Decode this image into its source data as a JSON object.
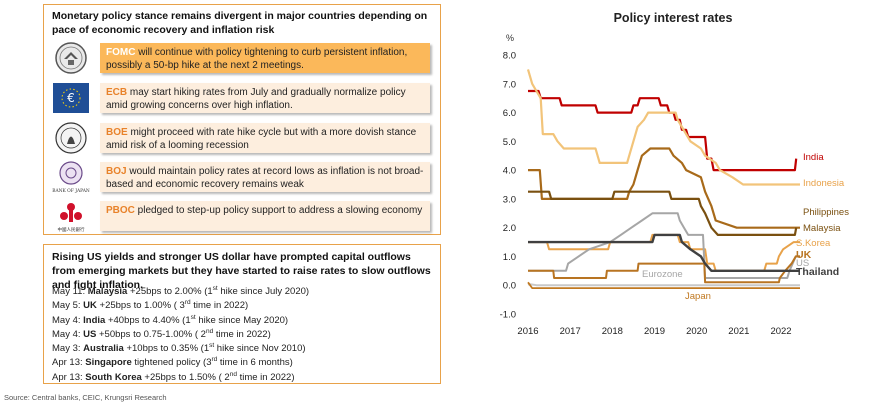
{
  "panels": {
    "policy_stance": {
      "heading": "Monetary policy stance remains divergent in major countries depending on pace of economic recovery and inflation risk",
      "banks": [
        {
          "name": "FOMC",
          "text": " will continue with policy tightening to curb persistent inflation, possibly a 50-bp hike at the next 2 meetings.",
          "logo": "federal-reserve-seal-icon"
        },
        {
          "name": "ECB",
          "text": " may start hiking rates from July and gradually normalize policy amid growing concerns over high inflation.",
          "logo": "euro-icon"
        },
        {
          "name": "BOE",
          "text": " might proceed with rate hike cycle but with a more dovish stance amid risk of a looming recession",
          "logo": "bank-of-england-seal-icon"
        },
        {
          "name": "BOJ",
          "text": " would maintain policy rates at record lows as inflation is not broad-based and economic recovery remains weak",
          "logo": "bank-of-japan-emblem-icon",
          "logo_caption": "BANK OF JAPAN"
        },
        {
          "name": "PBOC",
          "text": " pledged to step-up policy support to address a slowing economy",
          "logo": "peoples-bank-of-china-logo-icon",
          "logo_caption": "中國人民銀行"
        }
      ]
    },
    "rate_actions": {
      "heading": "Rising US yields and stronger US dollar have prompted capital outflows from emerging markets but they have started to raise rates to slow outflows and fight inflation.",
      "events": [
        {
          "date": "May 11: ",
          "country": "Malaysia",
          "detail": " +25bps to 2.00% (1",
          "sup": "st",
          "tail": " hike since July 2020)"
        },
        {
          "date": "May 5: ",
          "country": "UK",
          "detail": " +25bps to 1.00% ( 3",
          "sup": "rd",
          "tail": " time in 2022)"
        },
        {
          "date": "May 4: ",
          "country": "India",
          "detail": " +40bps to 4.40% (1",
          "sup": "st",
          "tail": " hike since  May 2020)"
        },
        {
          "date": "May 4: ",
          "country": "US",
          "detail": " +50bps to 0.75-1.00% ( 2",
          "sup": "nd",
          "tail": " time in 2022)"
        },
        {
          "date": "May 3: ",
          "country": "Australia",
          "detail": " +10bps to 0.35% (1",
          "sup": "st",
          "tail": " hike since  Nov 2010)"
        },
        {
          "date": "Apr 13: ",
          "country": "Singapore",
          "detail": " tightened policy (3",
          "sup": "rd",
          "tail": " time in 6 months)"
        },
        {
          "date": "Apr 13: ",
          "country": "South Korea",
          "detail": " +25bps  to 1.50% ( 2",
          "sup": "nd",
          "tail": " time in 2022)"
        }
      ]
    }
  },
  "source": "Source: Central banks, CEIC, Krungsri Research",
  "chart_data": {
    "type": "line",
    "title": "Policy interest rates",
    "ylabel": "%",
    "ylim": [
      -1.0,
      8.0
    ],
    "yticks": [
      "8.0",
      "7.0",
      "6.0",
      "5.0",
      "4.0",
      "3.0",
      "2.0",
      "1.0",
      "0.0",
      "-1.0"
    ],
    "xticks": [
      "2016",
      "2017",
      "2018",
      "2019",
      "2020",
      "2021",
      "2022"
    ],
    "x_range": [
      2016.0,
      2022.45
    ],
    "grid": false,
    "series": [
      {
        "name": "India",
        "color": "#c00000",
        "points": [
          [
            2016.0,
            6.75
          ],
          [
            2016.25,
            6.75
          ],
          [
            2016.3,
            6.5
          ],
          [
            2016.75,
            6.5
          ],
          [
            2016.8,
            6.25
          ],
          [
            2017.6,
            6.25
          ],
          [
            2017.65,
            6.0
          ],
          [
            2018.45,
            6.0
          ],
          [
            2018.5,
            6.25
          ],
          [
            2018.6,
            6.25
          ],
          [
            2018.65,
            6.5
          ],
          [
            2019.1,
            6.5
          ],
          [
            2019.15,
            6.25
          ],
          [
            2019.3,
            6.25
          ],
          [
            2019.35,
            6.0
          ],
          [
            2019.45,
            6.0
          ],
          [
            2019.5,
            5.75
          ],
          [
            2019.6,
            5.75
          ],
          [
            2019.65,
            5.4
          ],
          [
            2019.75,
            5.4
          ],
          [
            2019.8,
            5.15
          ],
          [
            2020.2,
            5.15
          ],
          [
            2020.25,
            4.4
          ],
          [
            2020.35,
            4.4
          ],
          [
            2020.4,
            4.0
          ],
          [
            2022.33,
            4.0
          ],
          [
            2022.36,
            4.4
          ]
        ]
      },
      {
        "name": "Indonesia",
        "color": "#f2c47a",
        "points": [
          [
            2016.0,
            7.5
          ],
          [
            2016.1,
            7.0
          ],
          [
            2016.2,
            6.75
          ],
          [
            2016.3,
            6.5
          ],
          [
            2016.35,
            5.25
          ],
          [
            2016.6,
            5.25
          ],
          [
            2016.7,
            5.0
          ],
          [
            2016.85,
            4.75
          ],
          [
            2017.6,
            4.75
          ],
          [
            2017.7,
            4.25
          ],
          [
            2018.35,
            4.25
          ],
          [
            2018.4,
            4.5
          ],
          [
            2018.5,
            5.0
          ],
          [
            2018.6,
            5.5
          ],
          [
            2018.75,
            5.75
          ],
          [
            2018.85,
            6.0
          ],
          [
            2019.5,
            6.0
          ],
          [
            2019.55,
            5.75
          ],
          [
            2019.65,
            5.5
          ],
          [
            2019.75,
            5.25
          ],
          [
            2019.85,
            5.0
          ],
          [
            2020.1,
            4.75
          ],
          [
            2020.2,
            4.5
          ],
          [
            2020.45,
            4.25
          ],
          [
            2020.55,
            4.0
          ],
          [
            2020.85,
            3.75
          ],
          [
            2021.1,
            3.5
          ],
          [
            2022.45,
            3.5
          ]
        ]
      },
      {
        "name": "Philippines",
        "color": "#a86a1a",
        "points": [
          [
            2016.0,
            4.0
          ],
          [
            2016.28,
            4.0
          ],
          [
            2016.33,
            3.0
          ],
          [
            2018.35,
            3.0
          ],
          [
            2018.4,
            3.25
          ],
          [
            2018.5,
            3.5
          ],
          [
            2018.6,
            4.0
          ],
          [
            2018.7,
            4.5
          ],
          [
            2018.9,
            4.75
          ],
          [
            2019.35,
            4.75
          ],
          [
            2019.45,
            4.5
          ],
          [
            2019.65,
            4.25
          ],
          [
            2019.75,
            4.0
          ],
          [
            2020.1,
            3.75
          ],
          [
            2020.2,
            3.25
          ],
          [
            2020.35,
            2.75
          ],
          [
            2020.45,
            2.25
          ],
          [
            2020.95,
            2.0
          ],
          [
            2022.45,
            2.0
          ]
        ]
      },
      {
        "name": "Malaysia",
        "color": "#7a5010",
        "points": [
          [
            2016.0,
            3.25
          ],
          [
            2016.5,
            3.25
          ],
          [
            2016.55,
            3.0
          ],
          [
            2018.0,
            3.0
          ],
          [
            2018.05,
            3.25
          ],
          [
            2019.35,
            3.25
          ],
          [
            2019.4,
            3.0
          ],
          [
            2020.05,
            3.0
          ],
          [
            2020.1,
            2.75
          ],
          [
            2020.2,
            2.5
          ],
          [
            2020.35,
            2.0
          ],
          [
            2020.5,
            1.75
          ],
          [
            2022.33,
            1.75
          ],
          [
            2022.36,
            2.0
          ]
        ]
      },
      {
        "name": "S.Korea",
        "color": "#e8a24a",
        "points": [
          [
            2016.0,
            1.5
          ],
          [
            2016.45,
            1.5
          ],
          [
            2016.5,
            1.25
          ],
          [
            2017.9,
            1.25
          ],
          [
            2017.95,
            1.5
          ],
          [
            2018.9,
            1.5
          ],
          [
            2018.95,
            1.75
          ],
          [
            2019.55,
            1.75
          ],
          [
            2019.6,
            1.5
          ],
          [
            2019.8,
            1.5
          ],
          [
            2019.85,
            1.25
          ],
          [
            2020.2,
            1.25
          ],
          [
            2020.25,
            0.75
          ],
          [
            2020.4,
            0.75
          ],
          [
            2020.45,
            0.5
          ],
          [
            2021.6,
            0.5
          ],
          [
            2021.65,
            0.75
          ],
          [
            2021.9,
            0.75
          ],
          [
            2021.95,
            1.0
          ],
          [
            2022.05,
            1.25
          ],
          [
            2022.3,
            1.5
          ],
          [
            2022.45,
            1.5
          ]
        ]
      },
      {
        "name": "US",
        "color": "#a6a6a6",
        "points": [
          [
            2016.0,
            0.5
          ],
          [
            2016.9,
            0.5
          ],
          [
            2016.95,
            0.75
          ],
          [
            2017.2,
            1.0
          ],
          [
            2017.45,
            1.25
          ],
          [
            2017.95,
            1.5
          ],
          [
            2018.2,
            1.75
          ],
          [
            2018.45,
            2.0
          ],
          [
            2018.7,
            2.25
          ],
          [
            2018.95,
            2.5
          ],
          [
            2019.55,
            2.5
          ],
          [
            2019.6,
            2.25
          ],
          [
            2019.7,
            2.0
          ],
          [
            2019.8,
            1.75
          ],
          [
            2020.15,
            1.75
          ],
          [
            2020.2,
            0.25
          ],
          [
            2022.15,
            0.25
          ],
          [
            2022.2,
            0.5
          ],
          [
            2022.35,
            1.0
          ],
          [
            2022.45,
            1.0
          ]
        ]
      },
      {
        "name": "UK",
        "color": "#b87422",
        "points": [
          [
            2016.0,
            0.5
          ],
          [
            2016.6,
            0.5
          ],
          [
            2016.62,
            0.25
          ],
          [
            2017.85,
            0.25
          ],
          [
            2017.87,
            0.5
          ],
          [
            2018.6,
            0.5
          ],
          [
            2018.62,
            0.75
          ],
          [
            2020.18,
            0.75
          ],
          [
            2020.2,
            0.1
          ],
          [
            2021.95,
            0.1
          ],
          [
            2021.97,
            0.25
          ],
          [
            2022.1,
            0.5
          ],
          [
            2022.25,
            0.75
          ],
          [
            2022.35,
            1.0
          ],
          [
            2022.45,
            1.0
          ]
        ]
      },
      {
        "name": "Thailand",
        "color": "#404040",
        "points": [
          [
            2016.0,
            1.5
          ],
          [
            2018.95,
            1.5
          ],
          [
            2019.0,
            1.75
          ],
          [
            2019.6,
            1.75
          ],
          [
            2019.65,
            1.5
          ],
          [
            2019.85,
            1.25
          ],
          [
            2020.1,
            1.0
          ],
          [
            2020.2,
            0.75
          ],
          [
            2020.35,
            0.5
          ],
          [
            2022.45,
            0.5
          ]
        ]
      },
      {
        "name": "Eurozone",
        "color": "#c8c8c8",
        "points": [
          [
            2016.0,
            0.05
          ],
          [
            2016.2,
            0.0
          ],
          [
            2022.45,
            0.0
          ]
        ]
      },
      {
        "name": "Japan",
        "color": "#c07820",
        "points": [
          [
            2016.0,
            0.1
          ],
          [
            2016.1,
            -0.1
          ],
          [
            2022.45,
            -0.1
          ]
        ]
      }
    ],
    "series_labels": [
      {
        "name": "India",
        "color": "#c00000",
        "bold": false
      },
      {
        "name": "Indonesia",
        "color": "#e8a24a",
        "bold": false
      },
      {
        "name": "Philippines",
        "color": "#7a5010",
        "bold": false
      },
      {
        "name": "Malaysia",
        "color": "#7a5010",
        "bold": false
      },
      {
        "name": "S.Korea",
        "color": "#e8a24a",
        "bold": false
      },
      {
        "name": "UK",
        "color": "#b87422",
        "bold": true
      },
      {
        "name": "US",
        "color": "#a6a6a6",
        "bold": false
      },
      {
        "name": "Thailand",
        "color": "#404040",
        "bold": true
      },
      {
        "name": "Eurozone",
        "color": "#a6a6a6",
        "bold": false
      },
      {
        "name": "Japan",
        "color": "#c07820",
        "bold": false
      }
    ]
  }
}
